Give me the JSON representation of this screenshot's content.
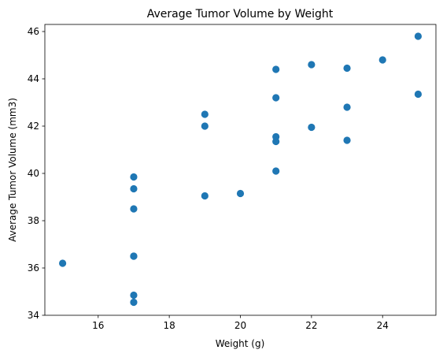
{
  "chart_data": {
    "type": "scatter",
    "title": "Average Tumor Volume by Weight",
    "xlabel": "Weight (g)",
    "ylabel": "Average Tumor Volume (mm3)",
    "xlim": [
      14.5,
      25.5
    ],
    "ylim": [
      34.0,
      46.3
    ],
    "xticks": [
      16,
      18,
      20,
      22,
      24
    ],
    "yticks": [
      34,
      36,
      38,
      40,
      42,
      44,
      46
    ],
    "grid": false,
    "legend": "none",
    "color": "#1f77b4",
    "points": [
      {
        "x": 15,
        "y": 36.2
      },
      {
        "x": 17,
        "y": 39.85
      },
      {
        "x": 17,
        "y": 39.35
      },
      {
        "x": 17,
        "y": 38.5
      },
      {
        "x": 17,
        "y": 36.5
      },
      {
        "x": 17,
        "y": 36.5
      },
      {
        "x": 17,
        "y": 34.85
      },
      {
        "x": 17,
        "y": 34.55
      },
      {
        "x": 19,
        "y": 42.5
      },
      {
        "x": 19,
        "y": 42.0
      },
      {
        "x": 19,
        "y": 39.05
      },
      {
        "x": 20,
        "y": 39.15
      },
      {
        "x": 21,
        "y": 44.4
      },
      {
        "x": 21,
        "y": 43.2
      },
      {
        "x": 21,
        "y": 41.55
      },
      {
        "x": 21,
        "y": 41.35
      },
      {
        "x": 21,
        "y": 40.1
      },
      {
        "x": 22,
        "y": 44.6
      },
      {
        "x": 22,
        "y": 41.95
      },
      {
        "x": 23,
        "y": 44.45
      },
      {
        "x": 23,
        "y": 42.8
      },
      {
        "x": 23,
        "y": 41.4
      },
      {
        "x": 24,
        "y": 44.8
      },
      {
        "x": 25,
        "y": 45.8
      },
      {
        "x": 25,
        "y": 43.35
      }
    ]
  }
}
